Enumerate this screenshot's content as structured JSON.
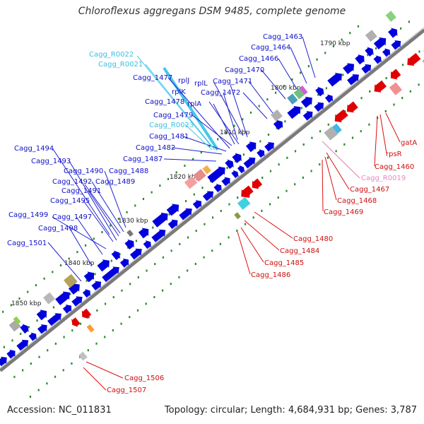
{
  "title": "Chloroflexus aggregans DSM 9485, complete genome",
  "footer": {
    "accession": "Accession: NC_011831",
    "summary": "Topology: circular; Length: 4,684,931 bp; Genes: 3,787"
  },
  "colors": {
    "forward_gene": "#0000dd",
    "reverse_gene": "#e00000",
    "rna": "#44c8e8",
    "pseudogene_rna": "#e67ab8",
    "backbone": "#808080",
    "kbp_tick": "#2a8a2a"
  },
  "kbp_labels": [
    {
      "text": "1790 kbp"
    },
    {
      "text": "1800 kbp"
    },
    {
      "text": "1810 kbp"
    },
    {
      "text": "1820 kbp"
    },
    {
      "text": "1830 kbp"
    },
    {
      "text": "1840 kbp"
    },
    {
      "text": "1850 kbp"
    }
  ],
  "forward_labels": [
    {
      "text": "Cagg_1463",
      "kind": "gene"
    },
    {
      "text": "Cagg_1464",
      "kind": "gene"
    },
    {
      "text": "Cagg_1466",
      "kind": "gene"
    },
    {
      "text": "Cagg_R0022",
      "kind": "rna"
    },
    {
      "text": "Cagg_R0021",
      "kind": "rna"
    },
    {
      "text": "Cagg_1470",
      "kind": "gene"
    },
    {
      "text": "Cagg_1471",
      "kind": "gene"
    },
    {
      "text": "Cagg_1477",
      "kind": "gene"
    },
    {
      "text": "rplJ",
      "kind": "gene"
    },
    {
      "text": "rplL",
      "kind": "gene"
    },
    {
      "text": "rplK",
      "kind": "gene"
    },
    {
      "text": "Cagg_1472",
      "kind": "gene"
    },
    {
      "text": "Cagg_1478",
      "kind": "gene"
    },
    {
      "text": "rplA",
      "kind": "gene"
    },
    {
      "text": "Cagg_1479",
      "kind": "gene"
    },
    {
      "text": "Cagg_R0023",
      "kind": "rna"
    },
    {
      "text": "Cagg_1481",
      "kind": "gene"
    },
    {
      "text": "Cagg_1482",
      "kind": "gene"
    },
    {
      "text": "Cagg_1494",
      "kind": "gene"
    },
    {
      "text": "Cagg_1487",
      "kind": "gene"
    },
    {
      "text": "Cagg_1493",
      "kind": "gene"
    },
    {
      "text": "Cagg_1490",
      "kind": "gene"
    },
    {
      "text": "Cagg_1488",
      "kind": "gene"
    },
    {
      "text": "Cagg_1492",
      "kind": "gene"
    },
    {
      "text": "Cagg_1489",
      "kind": "gene"
    },
    {
      "text": "Cagg_1491",
      "kind": "gene"
    },
    {
      "text": "Cagg_1495",
      "kind": "gene"
    },
    {
      "text": "Cagg_1499",
      "kind": "gene"
    },
    {
      "text": "Cagg_1497",
      "kind": "gene"
    },
    {
      "text": "Cagg_1498",
      "kind": "gene"
    },
    {
      "text": "Cagg_1501",
      "kind": "gene"
    }
  ],
  "reverse_labels": [
    {
      "text": "gatA",
      "kind": "gene"
    },
    {
      "text": "rpsR",
      "kind": "gene"
    },
    {
      "text": "Cagg_1460",
      "kind": "gene"
    },
    {
      "text": "Cagg_R0019",
      "kind": "pseudo"
    },
    {
      "text": "Cagg_1467",
      "kind": "gene"
    },
    {
      "text": "Cagg_1468",
      "kind": "gene"
    },
    {
      "text": "Cagg_1469",
      "kind": "gene"
    },
    {
      "text": "Cagg_1480",
      "kind": "gene"
    },
    {
      "text": "Cagg_1484",
      "kind": "gene"
    },
    {
      "text": "Cagg_1485",
      "kind": "gene"
    },
    {
      "text": "Cagg_1486",
      "kind": "gene"
    },
    {
      "text": "Cagg_1506",
      "kind": "gene"
    },
    {
      "text": "Cagg_1507",
      "kind": "gene"
    }
  ]
}
